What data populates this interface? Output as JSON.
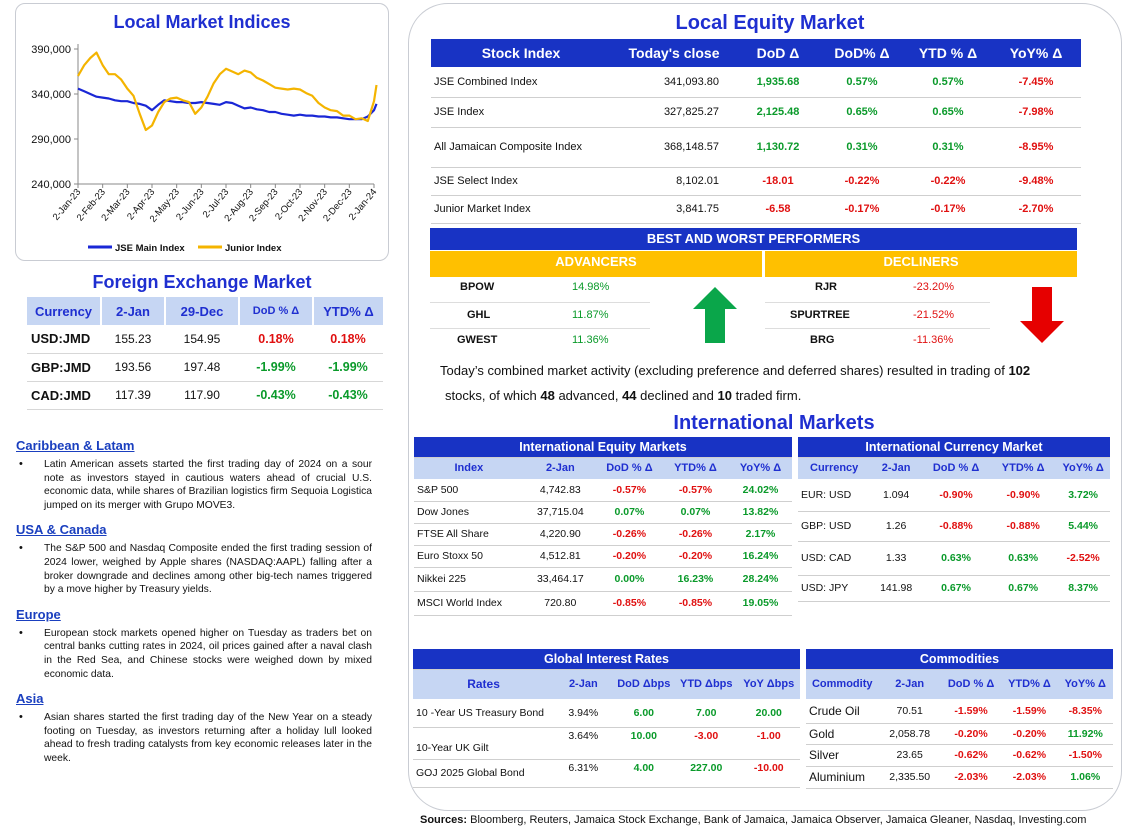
{
  "local_indices": {
    "title": "Local Market Indices",
    "chart_data": {
      "type": "line",
      "title": "Local Market Indices",
      "x_ticks": [
        "2-Jan-23",
        "2-Feb-23",
        "2-Mar-23",
        "2-Apr-23",
        "2-May-23",
        "2-Jun-23",
        "2-Jul-23",
        "2-Aug-23",
        "2-Sep-23",
        "2-Oct-23",
        "2-Nov-23",
        "2-Dec-23",
        "2-Jan-24"
      ],
      "y_ticks": [
        "240,000",
        "290,000",
        "340,000",
        "390,000"
      ],
      "ylim": [
        240000,
        390000
      ],
      "series": [
        {
          "name": "JSE Main Index",
          "color": "#1a27d6",
          "x": [
            0,
            0.25,
            0.5,
            0.75,
            1,
            1.25,
            1.5,
            1.75,
            2,
            2.25,
            2.5,
            2.75,
            3,
            3.25,
            3.5,
            3.75,
            4,
            4.25,
            4.5,
            4.75,
            5,
            5.25,
            5.5,
            5.75,
            6,
            6.25,
            6.5,
            6.75,
            7,
            7.25,
            7.5,
            7.75,
            8,
            8.25,
            8.5,
            8.75,
            9,
            9.25,
            9.5,
            9.75,
            10,
            10.25,
            10.5,
            10.75,
            11,
            11.25,
            11.5,
            11.75,
            12,
            12.1
          ],
          "values": [
            346000,
            343000,
            340000,
            337000,
            336000,
            335000,
            333000,
            332000,
            332000,
            330000,
            329000,
            327000,
            322000,
            328000,
            333000,
            332000,
            331000,
            331000,
            330000,
            330000,
            331000,
            330000,
            329000,
            328000,
            331000,
            330000,
            327000,
            324000,
            325000,
            323000,
            322000,
            320000,
            320000,
            318000,
            317000,
            316000,
            317000,
            316000,
            316000,
            315000,
            315000,
            314000,
            314000,
            313000,
            312000,
            312000,
            312000,
            315000,
            322000,
            329000
          ]
        },
        {
          "name": "Junior Index",
          "color": "#f4b400",
          "x": [
            0,
            0.25,
            0.5,
            0.75,
            1,
            1.25,
            1.5,
            1.75,
            2,
            2.25,
            2.5,
            2.75,
            3,
            3.25,
            3.5,
            3.75,
            4,
            4.25,
            4.5,
            4.75,
            5,
            5.25,
            5.5,
            5.75,
            6,
            6.25,
            6.5,
            6.75,
            7,
            7.25,
            7.5,
            7.75,
            8,
            8.25,
            8.5,
            8.75,
            9,
            9.25,
            9.5,
            9.75,
            10,
            10.25,
            10.5,
            10.75,
            11,
            11.25,
            11.5,
            11.75,
            12,
            12.1
          ],
          "values": [
            360000,
            372000,
            380000,
            386000,
            372000,
            362000,
            362000,
            356000,
            346000,
            338000,
            318000,
            300000,
            305000,
            320000,
            331000,
            335000,
            336000,
            333000,
            331000,
            318000,
            325000,
            337000,
            352000,
            362000,
            368000,
            365000,
            362000,
            366000,
            364000,
            358000,
            355000,
            351000,
            347000,
            346000,
            345000,
            346000,
            345000,
            341000,
            338000,
            330000,
            325000,
            322000,
            321000,
            316000,
            316000,
            312000,
            313000,
            310000,
            332000,
            350000
          ]
        }
      ]
    }
  },
  "fx": {
    "title": "Foreign Exchange Market",
    "headers": [
      "Currency",
      "2-Jan",
      "29-Dec",
      "DoD % Δ",
      "YTD% Δ"
    ],
    "rows": [
      {
        "cur": "USD:JMD",
        "a": "155.23",
        "b": "154.95",
        "dod": "0.18%",
        "ytd": "0.18%",
        "dod_sign": "neg",
        "ytd_sign": "neg"
      },
      {
        "cur": "GBP:JMD",
        "a": "193.56",
        "b": "197.48",
        "dod": "-1.99%",
        "ytd": "-1.99%",
        "dod_sign": "pos",
        "ytd_sign": "pos"
      },
      {
        "cur": "CAD:JMD",
        "a": "117.39",
        "b": "117.90",
        "dod": "-0.43%",
        "ytd": "-0.43%",
        "dod_sign": "pos",
        "ytd_sign": "pos"
      }
    ]
  },
  "news": [
    {
      "heading": "Caribbean & Latam",
      "text": "Latin American assets started the first trading day of 2024 on a sour note as investors stayed in cautious waters ahead of crucial U.S. economic data, while shares of Brazilian logistics firm Sequoia Logistica jumped on its merger with Grupo MOVE3."
    },
    {
      "heading": "USA & Canada",
      "text": "The S&P 500 and Nasdaq Composite ended the first trading session of 2024 lower, weighed by Apple shares (NASDAQ:AAPL) falling after a broker downgrade and declines among other big-tech names triggered by a move higher by Treasury yields."
    },
    {
      "heading": "Europe",
      "text": "European stock markets opened higher on Tuesday as traders bet on central banks cutting rates in 2024, oil prices gained after a naval clash in the Red Sea, and Chinese stocks were weighed down by mixed economic data."
    },
    {
      "heading": "Asia",
      "text": "Asian shares started the first trading day of the New Year on a steady footing on Tuesday, as investors returning after a holiday lull looked ahead to fresh trading catalysts from key economic releases later in the week."
    }
  ],
  "equity": {
    "title": "Local Equity Market",
    "headers": [
      "Stock Index",
      "Today's close",
      "DoD  Δ",
      "DoD% Δ",
      "YTD % Δ",
      "YoY% Δ"
    ],
    "rows": [
      {
        "name": "JSE Combined Index",
        "close": "341,093.80",
        "dod": "1,935.68",
        "dodp": "0.57%",
        "ytd": "0.57%",
        "yoy": "-7.45%",
        "s": "pos"
      },
      {
        "name": "JSE Index",
        "close": "327,825.27",
        "dod": "2,125.48",
        "dodp": "0.65%",
        "ytd": "0.65%",
        "yoy": "-7.98%",
        "s": "pos"
      },
      {
        "name": "All Jamaican Composite Index",
        "close": "368,148.57",
        "dod": "1,130.72",
        "dodp": "0.31%",
        "ytd": "0.31%",
        "yoy": "-8.95%",
        "s": "pos"
      },
      {
        "name": "JSE Select Index",
        "close": "8,102.01",
        "dod": "-18.01",
        "dodp": "-0.22%",
        "ytd": "-0.22%",
        "yoy": "-9.48%",
        "s": "neg"
      },
      {
        "name": "Junior Market Index",
        "close": "3,841.75",
        "dod": "-6.58",
        "dodp": "-0.17%",
        "ytd": "-0.17%",
        "yoy": "-2.70%",
        "s": "neg"
      }
    ]
  },
  "performers": {
    "title": "BEST AND WORST PERFORMERS",
    "adv_label": "ADVANCERS",
    "dec_label": "DECLINERS",
    "advancers": [
      {
        "sym": "BPOW",
        "pct": "14.98%"
      },
      {
        "sym": "GHL",
        "pct": "11.87%"
      },
      {
        "sym": "GWEST",
        "pct": "11.36%"
      }
    ],
    "decliners": [
      {
        "sym": "RJR",
        "pct": "-23.20%"
      },
      {
        "sym": "SPURTREE",
        "pct": "-21.52%"
      },
      {
        "sym": "BRG",
        "pct": "-11.36%"
      }
    ],
    "summary_pre": "Today’s combined market activity (excluding preference and deferred shares) resulted in trading of ",
    "traded": "102",
    "summary_mid1": " stocks, of which ",
    "advanced": "48",
    "summary_mid2": " advanced, ",
    "declined": "44",
    "summary_mid3": " declined and ",
    "firm": "10",
    "summary_end": " traded firm."
  },
  "intl": {
    "title": "International Markets",
    "equity": {
      "caption": "International Equity Markets",
      "headers": [
        "Index",
        "2-Jan",
        "DoD % Δ",
        "YTD% Δ",
        "YoY% Δ"
      ],
      "rows": [
        {
          "n": "S&P 500",
          "v": "4,742.83",
          "d": "-0.57%",
          "y": "-0.57%",
          "yy": "24.02%",
          "ds": "neg",
          "ys": "neg"
        },
        {
          "n": "Dow Jones",
          "v": "37,715.04",
          "d": "0.07%",
          "y": "0.07%",
          "yy": "13.82%",
          "ds": "pos",
          "ys": "pos"
        },
        {
          "n": "FTSE All Share",
          "v": "4,220.90",
          "d": "-0.26%",
          "y": "-0.26%",
          "yy": "2.17%",
          "ds": "neg",
          "ys": "neg"
        },
        {
          "n": "Euro Stoxx 50",
          "v": "4,512.81",
          "d": "-0.20%",
          "y": "-0.20%",
          "yy": "16.24%",
          "ds": "neg",
          "ys": "neg"
        },
        {
          "n": "Nikkei 225",
          "v": "33,464.17",
          "d": "0.00%",
          "y": "16.23%",
          "yy": "28.24%",
          "ds": "pos",
          "ys": "pos"
        },
        {
          "n": "MSCI World Index",
          "v": "720.80",
          "d": "-0.85%",
          "y": "-0.85%",
          "yy": "19.05%",
          "ds": "neg",
          "ys": "neg"
        }
      ]
    },
    "currency": {
      "caption": "International Currency Market",
      "headers": [
        "Currency",
        "2-Jan",
        "DoD % Δ",
        "YTD% Δ",
        "YoY% Δ"
      ],
      "rows": [
        {
          "n": "EUR: USD",
          "v": "1.094",
          "d": "-0.90%",
          "y": "-0.90%",
          "yy": "3.72%",
          "s": "neg",
          "ys": "pos"
        },
        {
          "n": "GBP: USD",
          "v": "1.26",
          "d": "-0.88%",
          "y": "-0.88%",
          "yy": "5.44%",
          "s": "neg",
          "ys": "pos"
        },
        {
          "n": "USD: CAD",
          "v": "1.33",
          "d": "0.63%",
          "y": "0.63%",
          "yy": "-2.52%",
          "s": "pos",
          "ys": "neg"
        },
        {
          "n": "USD: JPY",
          "v": "141.98",
          "d": "0.67%",
          "y": "0.67%",
          "yy": "8.37%",
          "s": "pos",
          "ys": "pos"
        }
      ]
    },
    "rates": {
      "caption": "Global Interest Rates",
      "headers": [
        "Rates",
        "2-Jan",
        "DoD Δbps",
        "YTD Δbps",
        "YoY Δbps"
      ],
      "rows": [
        {
          "n": "10 -Year US Treasury Bond",
          "v": "3.94%",
          "d": "6.00",
          "y": "7.00",
          "yy": "20.00",
          "s": "pos",
          "ys": "pos"
        },
        {
          "n": "10-Year UK Gilt",
          "v": "3.64%",
          "d": "10.00",
          "y": "-3.00",
          "yy": "-1.00",
          "s": "pos",
          "ys": "neg"
        },
        {
          "n": "GOJ 2025 Global Bond",
          "v": "6.31%",
          "d": "4.00",
          "y": "227.00",
          "yy": "-10.00",
          "s": "pos",
          "ys": "pos2"
        }
      ]
    },
    "commodities": {
      "caption": "Commodities",
      "headers": [
        "Commodity",
        "2-Jan",
        "DoD % Δ",
        "YTD% Δ",
        "YoY% Δ"
      ],
      "rows": [
        {
          "n": "Crude Oil",
          "v": "70.51",
          "d": "-1.59%",
          "y": "-1.59%",
          "yy": "-8.35%",
          "s": "neg",
          "ys": "neg"
        },
        {
          "n": "Gold",
          "v": "2,058.78",
          "d": "-0.20%",
          "y": "-0.20%",
          "yy": "11.92%",
          "s": "neg",
          "ys": "pos"
        },
        {
          "n": "Silver",
          "v": "23.65",
          "d": "-0.62%",
          "y": "-0.62%",
          "yy": "-1.50%",
          "s": "neg",
          "ys": "neg"
        },
        {
          "n": "Aluminium",
          "v": "2,335.50",
          "d": "-2.03%",
          "y": "-2.03%",
          "yy": "1.06%",
          "s": "neg",
          "ys": "pos"
        }
      ]
    }
  },
  "sources": {
    "label": "Sources:",
    "text": " Bloomberg, Reuters, Jamaica Stock Exchange, Bank of Jamaica, Jamaica Observer, Jamaica Gleaner, Nasdaq, Investing.com"
  }
}
